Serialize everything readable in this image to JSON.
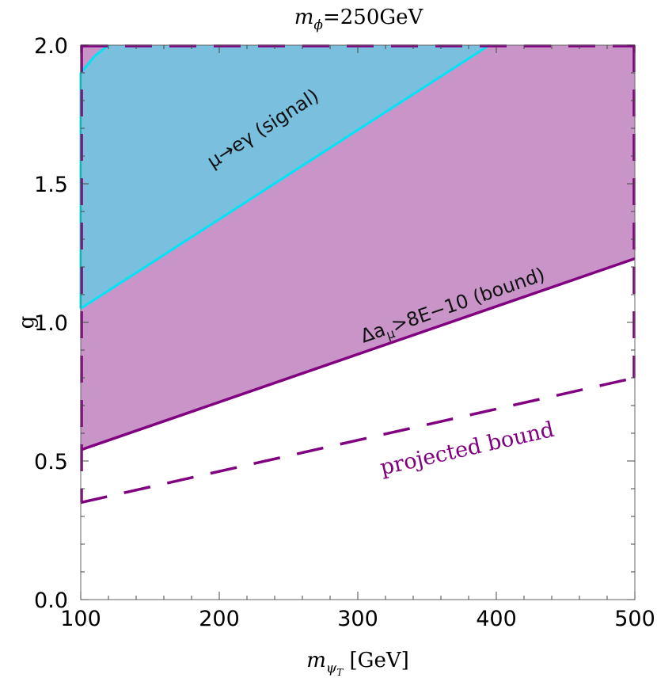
{
  "chart_data": {
    "type": "area",
    "title": "m_ϕ=250GeV",
    "title_parts": {
      "symbol": "m",
      "subscript": "ϕ",
      "rest": "=250GeV"
    },
    "xlabel": "m_ψT [GeV]",
    "xlabel_parts": {
      "symbol": "m",
      "subscript": "ψ",
      "subsub": "T",
      "rest": " [GeV]"
    },
    "ylabel": "g",
    "xlim": [
      100,
      500
    ],
    "ylim": [
      0.0,
      2.0
    ],
    "x_ticks": [
      100,
      200,
      300,
      400,
      500
    ],
    "x_tick_labels": [
      "100",
      "200",
      "300",
      "400",
      "500"
    ],
    "y_ticks": [
      0.0,
      0.5,
      1.0,
      1.5,
      2.0
    ],
    "y_tick_labels": [
      "0.0",
      "0.5",
      "1.0",
      "1.5",
      "2.0"
    ],
    "grid": false,
    "colors": {
      "bound_fill": "#c995c9",
      "bound_line": "#800080",
      "signal_fill": "#7ac0de",
      "signal_line": "#00e5f5",
      "projected_line": "#800080"
    },
    "series": [
      {
        "name": "Δa_μ>8E−10 (bound)",
        "label_text": "Δa",
        "label_sub": "μ",
        "label_rest": ">8E−10 (bound)",
        "style": "solid",
        "x": [
          100,
          500
        ],
        "y": [
          0.54,
          1.23
        ]
      },
      {
        "name": "μ→eγ (signal)",
        "label_text": "μ→eγ (signal)",
        "style": "region",
        "x": [
          100,
          100,
          110,
          120,
          395
        ],
        "y": [
          1.05,
          1.9,
          1.96,
          2.0,
          2.0
        ],
        "boundary_x": [
          100,
          395
        ],
        "boundary_y": [
          1.05,
          2.0
        ]
      },
      {
        "name": "projected bound",
        "label_text": "projected bound",
        "style": "dashed",
        "x": [
          100,
          500
        ],
        "y": [
          0.35,
          0.8
        ]
      }
    ]
  }
}
